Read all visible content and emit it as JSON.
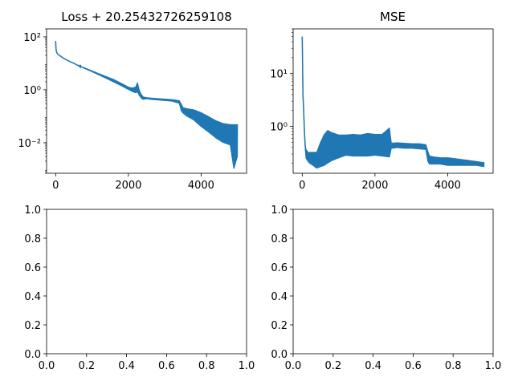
{
  "chart_data": [
    {
      "type": "line",
      "title": "Loss + 20.25432726259108",
      "xlabel": "",
      "ylabel": "",
      "xscale": "linear",
      "yscale": "log",
      "xlim": [
        -250,
        5250
      ],
      "ylim": [
        0.0007,
        200
      ],
      "xticks": [
        0,
        2000,
        4000
      ],
      "xtick_labels": [
        "0",
        "2000",
        "4000"
      ],
      "yticks": [
        0.01,
        1,
        100
      ],
      "ytick_labels": [
        "10⁻²",
        "10⁰",
        "10²"
      ],
      "grid": false,
      "legend": false,
      "series_color": "#1f77b4",
      "series": [
        {
          "name": "",
          "x": [
            0,
            5,
            10,
            20,
            40,
            60,
            80,
            100,
            150,
            200,
            300,
            400,
            500,
            600,
            800,
            1000,
            1200,
            1400,
            1600,
            1800,
            2000,
            2100,
            2200,
            2250,
            2300,
            2350,
            2400,
            2500,
            2700,
            3000,
            3200,
            3400,
            3450,
            3500,
            3600,
            3800,
            4000,
            4200,
            4400,
            4600,
            4800,
            4900,
            5000
          ],
          "y": [
            70,
            45,
            35,
            28,
            24,
            22,
            21,
            20,
            18,
            16,
            13.5,
            11.5,
            10,
            8.5,
            6.5,
            5,
            3.8,
            2.9,
            2.2,
            1.6,
            1.15,
            1.0,
            0.95,
            1.2,
            0.8,
            0.6,
            0.5,
            0.48,
            0.45,
            0.42,
            0.4,
            0.35,
            0.22,
            0.18,
            0.15,
            0.12,
            0.09,
            0.06,
            0.04,
            0.03,
            0.025,
            0.02,
            0.02
          ],
          "upper": [
            70,
            45,
            35,
            28,
            24,
            22,
            21,
            20,
            18,
            16,
            13.5,
            11.5,
            10,
            8.5,
            6.8,
            5.3,
            4.1,
            3.2,
            2.5,
            1.8,
            1.3,
            1.2,
            1.3,
            1.9,
            1.0,
            0.7,
            0.56,
            0.52,
            0.49,
            0.46,
            0.44,
            0.4,
            0.3,
            0.22,
            0.2,
            0.18,
            0.14,
            0.1,
            0.07,
            0.055,
            0.05,
            0.05,
            0.05
          ],
          "lower": [
            70,
            45,
            35,
            28,
            24,
            22,
            21,
            20,
            18,
            16,
            13.5,
            11.5,
            10,
            8.5,
            6.2,
            4.7,
            3.5,
            2.6,
            1.9,
            1.4,
            1.0,
            0.85,
            0.75,
            0.8,
            0.6,
            0.48,
            0.42,
            0.44,
            0.41,
            0.38,
            0.36,
            0.3,
            0.16,
            0.13,
            0.1,
            0.07,
            0.04,
            0.025,
            0.015,
            0.01,
            0.008,
            0.001,
            0.003
          ]
        }
      ]
    },
    {
      "type": "line",
      "title": "MSE",
      "xlabel": "",
      "ylabel": "",
      "xscale": "linear",
      "yscale": "log",
      "xlim": [
        -250,
        5250
      ],
      "ylim": [
        0.13,
        70
      ],
      "xticks": [
        0,
        2000,
        4000
      ],
      "xtick_labels": [
        "0",
        "2000",
        "4000"
      ],
      "yticks": [
        1,
        10
      ],
      "ytick_labels": [
        "10⁰",
        "10¹"
      ],
      "grid": false,
      "legend": false,
      "series_color": "#1f77b4",
      "series": [
        {
          "name": "",
          "x": [
            0,
            10,
            20,
            40,
            60,
            80,
            100,
            150,
            200,
            300,
            400,
            500,
            600,
            700,
            800,
            1000,
            1200,
            1400,
            1600,
            1800,
            2000,
            2200,
            2400,
            2450,
            2500,
            2600,
            2800,
            3000,
            3200,
            3400,
            3450,
            3500,
            3600,
            3800,
            4000,
            4200,
            4400,
            4600,
            4800,
            5000
          ],
          "y": [
            50,
            15,
            4,
            2,
            0.8,
            0.45,
            0.3,
            0.28,
            0.28,
            0.26,
            0.25,
            0.3,
            0.35,
            0.4,
            0.45,
            0.48,
            0.5,
            0.5,
            0.5,
            0.5,
            0.5,
            0.5,
            0.5,
            0.45,
            0.44,
            0.45,
            0.44,
            0.44,
            0.43,
            0.42,
            0.3,
            0.24,
            0.23,
            0.22,
            0.21,
            0.21,
            0.2,
            0.2,
            0.19,
            0.19
          ],
          "upper": [
            50,
            15,
            4,
            2,
            0.8,
            0.45,
            0.38,
            0.33,
            0.33,
            0.33,
            0.33,
            0.5,
            0.7,
            0.85,
            0.78,
            0.7,
            0.7,
            0.72,
            0.7,
            0.75,
            0.72,
            0.72,
            0.95,
            0.5,
            0.49,
            0.5,
            0.49,
            0.48,
            0.48,
            0.46,
            0.35,
            0.28,
            0.27,
            0.26,
            0.26,
            0.25,
            0.24,
            0.23,
            0.22,
            0.21
          ],
          "lower": [
            50,
            15,
            4,
            2,
            0.8,
            0.45,
            0.25,
            0.22,
            0.2,
            0.18,
            0.16,
            0.17,
            0.18,
            0.2,
            0.22,
            0.25,
            0.28,
            0.27,
            0.27,
            0.27,
            0.28,
            0.27,
            0.26,
            0.38,
            0.38,
            0.39,
            0.38,
            0.38,
            0.37,
            0.36,
            0.22,
            0.19,
            0.19,
            0.19,
            0.18,
            0.18,
            0.18,
            0.18,
            0.18,
            0.17
          ]
        }
      ]
    },
    {
      "type": "line",
      "title": "",
      "xlabel": "",
      "ylabel": "",
      "xscale": "linear",
      "yscale": "linear",
      "xlim": [
        0.0,
        1.0
      ],
      "ylim": [
        0.0,
        1.0
      ],
      "xticks": [
        0.0,
        0.2,
        0.4,
        0.6,
        0.8,
        1.0
      ],
      "xtick_labels": [
        "0.0",
        "0.2",
        "0.4",
        "0.6",
        "0.8",
        "1.0"
      ],
      "yticks": [
        0.0,
        0.2,
        0.4,
        0.6,
        0.8,
        1.0
      ],
      "ytick_labels": [
        "0.0",
        "0.2",
        "0.4",
        "0.6",
        "0.8",
        "1.0"
      ],
      "grid": false,
      "legend": false,
      "series": []
    },
    {
      "type": "line",
      "title": "",
      "xlabel": "",
      "ylabel": "",
      "xscale": "linear",
      "yscale": "linear",
      "xlim": [
        0.0,
        1.0
      ],
      "ylim": [
        0.0,
        1.0
      ],
      "xticks": [
        0.0,
        0.2,
        0.4,
        0.6,
        0.8,
        1.0
      ],
      "xtick_labels": [
        "0.0",
        "0.2",
        "0.4",
        "0.6",
        "0.8",
        "1.0"
      ],
      "yticks": [
        0.0,
        0.2,
        0.4,
        0.6,
        0.8,
        1.0
      ],
      "ytick_labels": [
        "0.0",
        "0.2",
        "0.4",
        "0.6",
        "0.8",
        "1.0"
      ],
      "grid": false,
      "legend": false,
      "series": []
    }
  ]
}
